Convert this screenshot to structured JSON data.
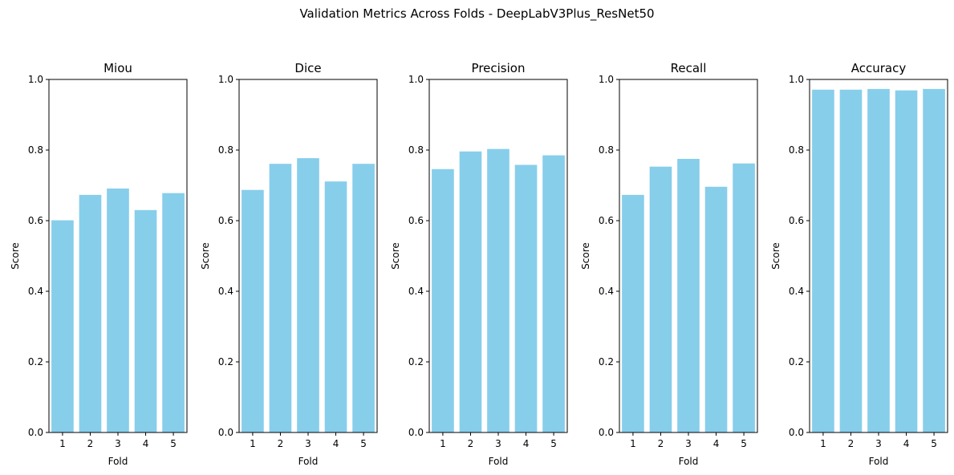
{
  "suptitle": "Validation Metrics Across Folds - DeepLabV3Plus_ResNet50",
  "bar_color": "#87CEEB",
  "chart_data": [
    {
      "type": "bar",
      "title": "Miou",
      "xlabel": "Fold",
      "ylabel": "Score",
      "categories": [
        "1",
        "2",
        "3",
        "4",
        "5"
      ],
      "values": [
        0.601,
        0.673,
        0.691,
        0.63,
        0.678
      ],
      "ylim": [
        0,
        1
      ],
      "yticks": [
        "0.0",
        "0.2",
        "0.4",
        "0.6",
        "0.8",
        "1.0"
      ],
      "grid": false
    },
    {
      "type": "bar",
      "title": "Dice",
      "xlabel": "Fold",
      "ylabel": "Score",
      "categories": [
        "1",
        "2",
        "3",
        "4",
        "5"
      ],
      "values": [
        0.687,
        0.761,
        0.777,
        0.711,
        0.761
      ],
      "ylim": [
        0,
        1
      ],
      "yticks": [
        "0.0",
        "0.2",
        "0.4",
        "0.6",
        "0.8",
        "1.0"
      ],
      "grid": false
    },
    {
      "type": "bar",
      "title": "Precision",
      "xlabel": "Fold",
      "ylabel": "Score",
      "categories": [
        "1",
        "2",
        "3",
        "4",
        "5"
      ],
      "values": [
        0.746,
        0.796,
        0.803,
        0.758,
        0.785
      ],
      "ylim": [
        0,
        1
      ],
      "yticks": [
        "0.0",
        "0.2",
        "0.4",
        "0.6",
        "0.8",
        "1.0"
      ],
      "grid": false
    },
    {
      "type": "bar",
      "title": "Recall",
      "xlabel": "Fold",
      "ylabel": "Score",
      "categories": [
        "1",
        "2",
        "3",
        "4",
        "5"
      ],
      "values": [
        0.673,
        0.753,
        0.775,
        0.696,
        0.762
      ],
      "ylim": [
        0,
        1
      ],
      "yticks": [
        "0.0",
        "0.2",
        "0.4",
        "0.6",
        "0.8",
        "1.0"
      ],
      "grid": false
    },
    {
      "type": "bar",
      "title": "Accuracy",
      "xlabel": "Fold",
      "ylabel": "Score",
      "categories": [
        "1",
        "2",
        "3",
        "4",
        "5"
      ],
      "values": [
        0.971,
        0.971,
        0.973,
        0.969,
        0.973
      ],
      "ylim": [
        0,
        1
      ],
      "yticks": [
        "0.0",
        "0.2",
        "0.4",
        "0.6",
        "0.8",
        "1.0"
      ],
      "grid": false
    }
  ]
}
